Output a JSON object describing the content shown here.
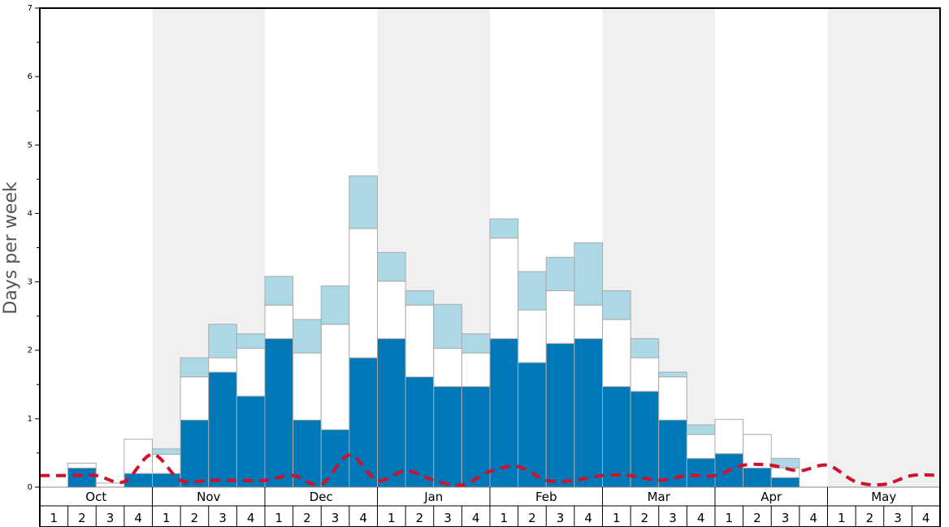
{
  "chart_data": {
    "type": "bar",
    "ylabel": "Days per week",
    "ylim": [
      0,
      7
    ],
    "y_ticks": [
      "0",
      "1",
      "2",
      "3",
      "4",
      "5",
      "6",
      "7"
    ],
    "months": [
      "Oct",
      "Nov",
      "Dec",
      "Jan",
      "Feb",
      "Mar",
      "Apr",
      "May"
    ],
    "week_labels": [
      "1",
      "2",
      "3",
      "4",
      "1",
      "2",
      "3",
      "4",
      "1",
      "2",
      "3",
      "4",
      "1",
      "2",
      "3",
      "4",
      "1",
      "2",
      "3",
      "4",
      "1",
      "2",
      "3",
      "4",
      "1",
      "2",
      "3",
      "4",
      "1",
      "2",
      "3",
      "4"
    ],
    "colors": {
      "dark_segment": "#0077b6",
      "white_segment": "#ffffff",
      "light_segment": "#add8e6",
      "bar_stroke": "#aaaaaa",
      "line": "#d0112b",
      "band": "#f0f0f0"
    },
    "stacked_bars": {
      "dark": [
        0,
        0.28,
        0,
        0.2,
        0.2,
        0.98,
        1.68,
        1.33,
        2.17,
        0.98,
        0.84,
        1.89,
        2.17,
        1.61,
        1.47,
        1.47,
        2.17,
        1.82,
        2.1,
        2.17,
        1.47,
        1.4,
        0.98,
        0.42,
        0.49,
        0.28,
        0.14,
        0,
        0,
        0,
        0,
        0
      ],
      "white": [
        0,
        0.07,
        0.06,
        0.5,
        0.28,
        0.63,
        0.21,
        0.7,
        0.49,
        0.98,
        1.54,
        1.89,
        0.84,
        1.05,
        0.56,
        0.49,
        1.47,
        0.77,
        0.77,
        0.49,
        0.98,
        0.49,
        0.63,
        0.35,
        0.5,
        0.49,
        0.14,
        0,
        0,
        0,
        0,
        0
      ],
      "light": [
        0,
        0,
        0,
        0,
        0.08,
        0.28,
        0.49,
        0.21,
        0.42,
        0.49,
        0.56,
        0.77,
        0.42,
        0.21,
        0.64,
        0.28,
        0.28,
        0.56,
        0.49,
        0.91,
        0.42,
        0.28,
        0.07,
        0.14,
        0,
        0,
        0.14,
        0,
        0,
        0,
        0,
        0
      ]
    },
    "dashed_line": [
      0.17,
      0.17,
      0.17,
      0.08,
      0.48,
      0.1,
      0.1,
      0.1,
      0.1,
      0.17,
      0.04,
      0.47,
      0.1,
      0.24,
      0.1,
      0.03,
      0.23,
      0.3,
      0.1,
      0.1,
      0.17,
      0.17,
      0.1,
      0.17,
      0.17,
      0.32,
      0.32,
      0.24,
      0.32,
      0.08,
      0.04,
      0.17,
      0.17
    ],
    "grid": false,
    "legend": "none"
  }
}
